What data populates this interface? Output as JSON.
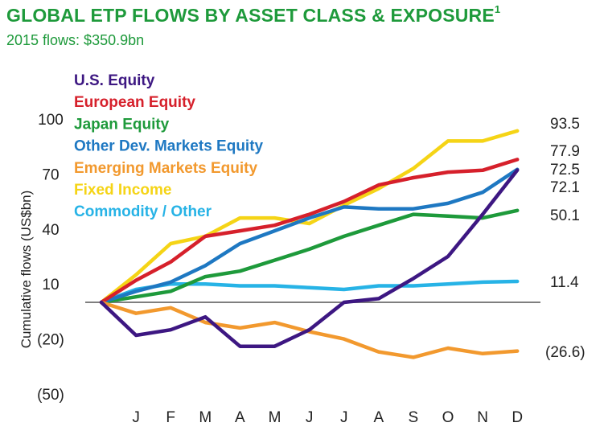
{
  "header": {
    "title": "GLOBAL ETP FLOWS BY ASSET CLASS & EXPOSURE",
    "title_sup": "1",
    "subtitle": "2015 flows: $350.9bn"
  },
  "chart_data": {
    "type": "line",
    "title": "GLOBAL ETP FLOWS BY ASSET CLASS & EXPOSURE",
    "subtitle": "2015 flows: $350.9bn",
    "ylabel": "Cumulative flows (US$bn)",
    "xlabel": "",
    "x": [
      "",
      "J",
      "F",
      "M",
      "A",
      "M",
      "J",
      "J",
      "A",
      "S",
      "O",
      "N",
      "D"
    ],
    "xticks": [
      "J",
      "F",
      "M",
      "A",
      "M",
      "J",
      "J",
      "A",
      "S",
      "O",
      "N",
      "D"
    ],
    "ylim": [
      -50,
      100
    ],
    "yticks": [
      100,
      70,
      40,
      10,
      -20,
      -50
    ],
    "ytick_labels": [
      "100",
      "70",
      "40",
      "10",
      "(20)",
      "(50)"
    ],
    "zero_line": true,
    "grid": false,
    "legend_position": "top-left",
    "series": [
      {
        "name": "U.S. Equity",
        "color": "#3d1782",
        "values": [
          0,
          -18,
          -15,
          -8,
          -24,
          -24,
          -15,
          0,
          2,
          13,
          25,
          48,
          72.1
        ],
        "end_label": "72.1"
      },
      {
        "name": "European Equity",
        "color": "#d6202b",
        "values": [
          0,
          12,
          22,
          36,
          39,
          42,
          48,
          55,
          64,
          68,
          71,
          72,
          77.9
        ],
        "end_label": "77.9"
      },
      {
        "name": "Japan Equity",
        "color": "#1e9a3b",
        "values": [
          0,
          3,
          6,
          14,
          17,
          23,
          29,
          36,
          42,
          48,
          47,
          46,
          50.1
        ],
        "end_label": "50.1"
      },
      {
        "name": "Other Dev. Markets Equity",
        "color": "#1e78c2",
        "values": [
          0,
          6,
          11,
          20,
          32,
          39,
          46,
          52,
          51,
          51,
          54,
          60,
          72.5
        ],
        "end_label": "72.5"
      },
      {
        "name": "Emerging Markets Equity",
        "color": "#f2992e",
        "values": [
          0,
          -6,
          -3,
          -11,
          -14,
          -11,
          -16,
          -20,
          -27,
          -30,
          -25,
          -28,
          -26.6
        ],
        "end_label": "(26.6)"
      },
      {
        "name": "Fixed Income",
        "color": "#f5d416",
        "values": [
          0,
          15,
          32,
          36,
          46,
          46,
          43,
          53,
          62,
          73,
          88,
          88,
          93.5
        ],
        "end_label": "93.5"
      },
      {
        "name": "Commodity / Other",
        "color": "#27b3e6",
        "values": [
          0,
          7,
          10,
          10,
          9,
          9,
          8,
          7,
          9,
          9,
          10,
          11,
          11.4
        ],
        "end_label": "11.4"
      }
    ]
  }
}
